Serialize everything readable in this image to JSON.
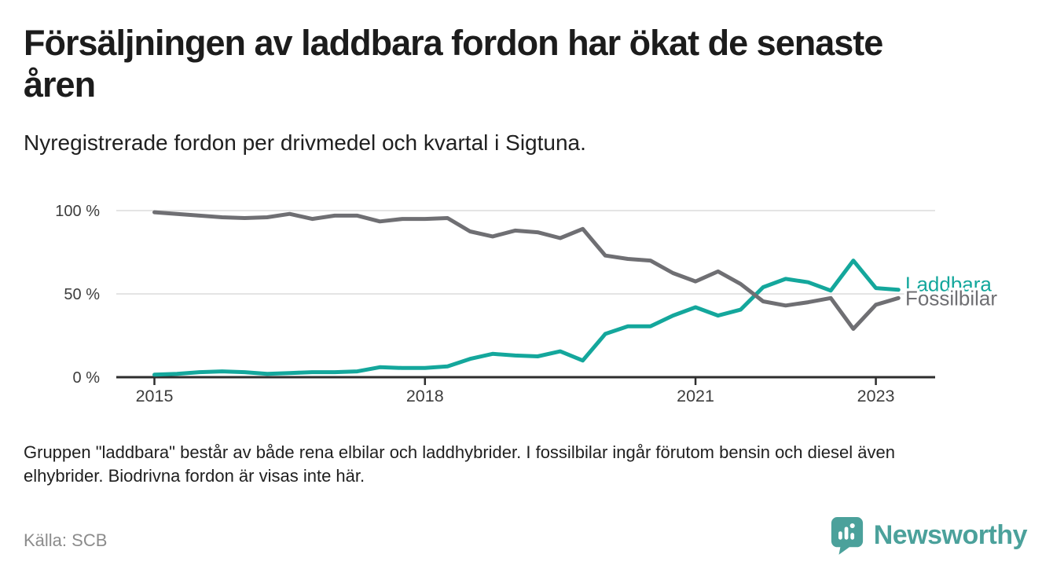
{
  "header": {
    "title": "Försäljningen av laddbara fordon har ökat de senaste åren",
    "title_lines": [
      "Försäljningen av laddbara fordon har ökat de senaste",
      "åren"
    ],
    "subtitle": "Nyregistrerade fordon per drivmedel och kvartal i Sigtuna."
  },
  "chart_data": {
    "type": "line",
    "title": "Nyregistrerade fordon per drivmedel och kvartal i Sigtuna",
    "x_axis": {
      "unit": "quarter",
      "start": "2015-Q1",
      "end": "2023-Q2",
      "ticks": [
        {
          "label": "2015",
          "q": 0
        },
        {
          "label": "2018",
          "q": 12
        },
        {
          "label": "2021",
          "q": 24
        },
        {
          "label": "2023",
          "q": 32
        }
      ]
    },
    "y_axis": {
      "range": [
        0,
        100
      ],
      "unit": "%",
      "ticks": [
        {
          "label": "0 %",
          "value": 0
        },
        {
          "label": "50 %",
          "value": 50
        },
        {
          "label": "100 %",
          "value": 100
        }
      ]
    },
    "grid": "horizontal",
    "legend": "line-end-labels",
    "quarters": [
      "2015-Q1",
      "2015-Q2",
      "2015-Q3",
      "2015-Q4",
      "2016-Q1",
      "2016-Q2",
      "2016-Q3",
      "2016-Q4",
      "2017-Q1",
      "2017-Q2",
      "2017-Q3",
      "2017-Q4",
      "2018-Q1",
      "2018-Q2",
      "2018-Q3",
      "2018-Q4",
      "2019-Q1",
      "2019-Q2",
      "2019-Q3",
      "2019-Q4",
      "2020-Q1",
      "2020-Q2",
      "2020-Q3",
      "2020-Q4",
      "2021-Q1",
      "2021-Q2",
      "2021-Q3",
      "2021-Q4",
      "2022-Q1",
      "2022-Q2",
      "2022-Q3",
      "2022-Q4",
      "2023-Q1",
      "2023-Q2"
    ],
    "series": [
      {
        "name": "Laddbara",
        "color": "#14a79c",
        "values": [
          1.5,
          2,
          3,
          3.5,
          3,
          2,
          2.5,
          3,
          3,
          3.5,
          6,
          5.5,
          5.5,
          6.5,
          11,
          14,
          13,
          12.5,
          15.5,
          10,
          26,
          30.5,
          30.5,
          37,
          42,
          37,
          40.5,
          54,
          59,
          57,
          52,
          70,
          53.5,
          52.5
        ]
      },
      {
        "name": "Fossilbilar",
        "color": "#6f6f73",
        "values": [
          99,
          98,
          97,
          96,
          95.5,
          96,
          98,
          95,
          97,
          97,
          93.5,
          95,
          95,
          95.5,
          87.5,
          84.5,
          88,
          87,
          83.5,
          89,
          73,
          71,
          70,
          62.5,
          57.5,
          63.5,
          56,
          45.5,
          43,
          45,
          47.5,
          29,
          43.5,
          47.5
        ]
      }
    ]
  },
  "footnote": {
    "text": "Gruppen \"laddbara\" består av både rena elbilar och laddhybrider. I fossilbilar ingår förutom bensin och diesel även elhybrider. Biodrivna fordon är visas inte här.",
    "lines": [
      "Gruppen \"laddbara\" består av både rena elbilar och laddhybrider. I fossilbilar ingår förutom bensin och diesel även",
      "elhybrider. Biodrivna fordon är visas inte här."
    ]
  },
  "source": {
    "label": "Källa: SCB"
  },
  "logo": {
    "text": "Newsworthy",
    "icon": "newsworthy-speech-bubble-bar-chart-icon",
    "color": "#4ba19b"
  },
  "colors": {
    "grid": "#e4e4e4",
    "axis": "#2e2e2e",
    "tick_text": "#3d3d3d",
    "title_text": "#1c1c1c",
    "body_text": "#202020",
    "muted_text": "#8c8c8c",
    "accent_teal": "#14a79c",
    "line_gray": "#6f6f73",
    "logo_teal": "#4ba19b"
  }
}
